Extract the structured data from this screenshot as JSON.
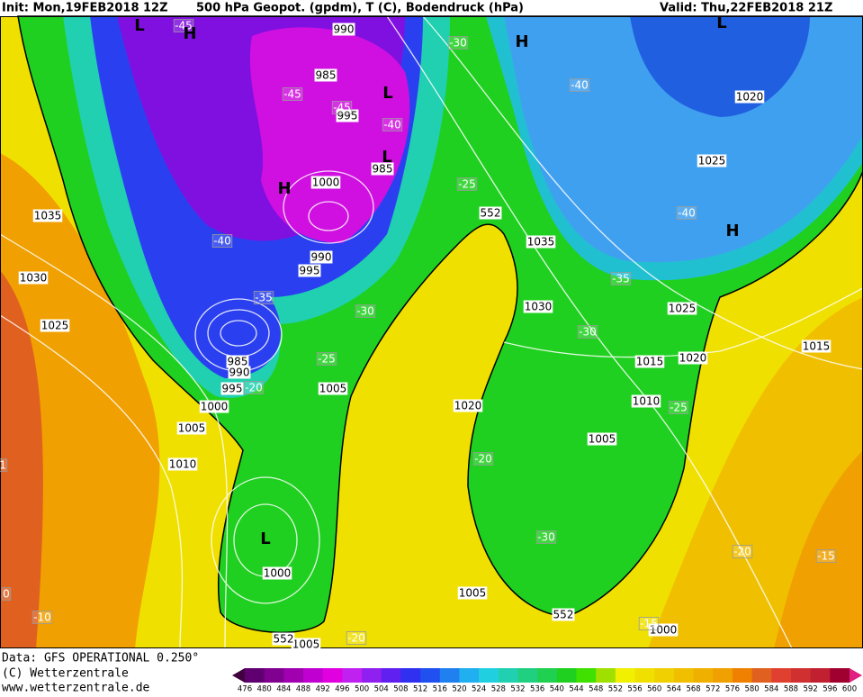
{
  "header": {
    "init": "Init: Mon,19FEB2018 12Z",
    "title": "500 hPa Geopot. (gpdm), T (C), Bodendruck (hPa)",
    "valid": "Valid: Thu,22FEB2018 21Z"
  },
  "footer": {
    "data": "Data: GFS OPERATIONAL 0.250°",
    "copyright": "(C) Wetterzentrale",
    "url": "www.wetterzentrale.de"
  },
  "colorbar": {
    "levels": [
      476,
      480,
      484,
      488,
      492,
      496,
      500,
      504,
      508,
      512,
      516,
      520,
      524,
      528,
      532,
      536,
      540,
      544,
      548,
      552,
      556,
      560,
      564,
      568,
      572,
      576,
      580,
      584,
      588,
      592,
      596,
      600
    ],
    "colors": [
      "#400040",
      "#600070",
      "#800090",
      "#a000b0",
      "#c000d0",
      "#e000e0",
      "#c020f0",
      "#9020f0",
      "#6020f0",
      "#3030f0",
      "#2050f0",
      "#2080f0",
      "#20b0f0",
      "#20d0e0",
      "#20d0b0",
      "#20d080",
      "#20d050",
      "#20d020",
      "#40e000",
      "#a0e000",
      "#f0f000",
      "#f0e000",
      "#f0d000",
      "#f0c000",
      "#f0b000",
      "#f0a000",
      "#f08000",
      "#e06020",
      "#e04030",
      "#d03030",
      "#c02030",
      "#a00030",
      "#e02080"
    ]
  },
  "map": {
    "pressure_labels": [
      "990",
      "985",
      "995",
      "985",
      "1000",
      "990",
      "995",
      "1035",
      "1030",
      "1025",
      "985",
      "990",
      "995",
      "1000",
      "1005",
      "1010",
      "1005",
      "1000",
      "1005",
      "1005",
      "1000",
      "1020",
      "1005",
      "1010",
      "1015",
      "1020",
      "1025",
      "1030",
      "1035",
      "1025",
      "1020",
      "1015"
    ],
    "temperature_labels": [
      "-45",
      "-45",
      "-40",
      "-40",
      "-35",
      "-30",
      "-25",
      "-20",
      "-30",
      "-40",
      "-25",
      "-40",
      "-35",
      "-30",
      "-25",
      "-20",
      "-30",
      "-20",
      "-15",
      "-10",
      "-15",
      "-20",
      "-45",
      "0",
      "1"
    ],
    "centers": [
      "L",
      "H",
      "L",
      "L",
      "H",
      "H",
      "L",
      "H",
      "L"
    ],
    "height_labels": [
      "552",
      "552",
      "552"
    ]
  }
}
